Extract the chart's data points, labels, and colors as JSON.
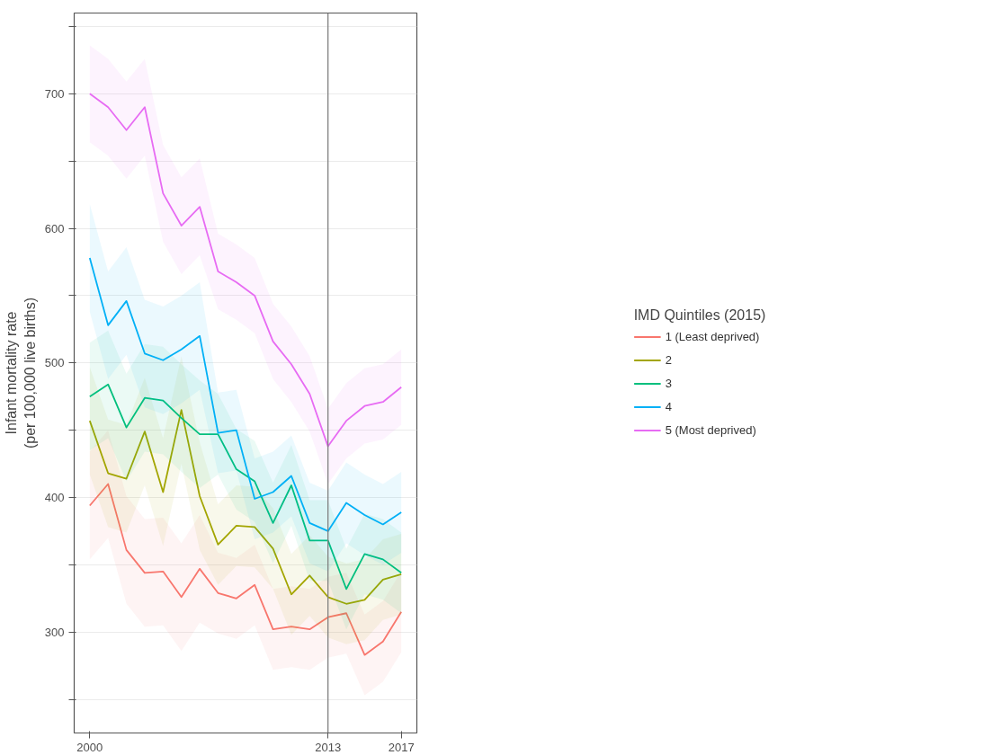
{
  "chart_data": {
    "type": "line",
    "ylabel": "Infant mortality rate\n(per 100,000 live births)",
    "legend_title": "IMD Quintiles (2015)",
    "x": [
      2000,
      2001,
      2002,
      2003,
      2004,
      2005,
      2006,
      2007,
      2008,
      2009,
      2010,
      2011,
      2012,
      2013,
      2014,
      2015,
      2016,
      2017
    ],
    "xlim": [
      1999.15,
      2017.85
    ],
    "xticks": [
      2000,
      2013,
      2017
    ],
    "ylim": [
      225,
      760
    ],
    "yticks": [
      {
        "value": 250,
        "label": null
      },
      300,
      {
        "value": 350,
        "label": null
      },
      400,
      {
        "value": 450,
        "label": null
      },
      500,
      {
        "value": 550,
        "label": null
      },
      600,
      {
        "value": 650,
        "label": null
      },
      700,
      {
        "value": 750,
        "label": null
      }
    ],
    "grid": "y",
    "legend": "right",
    "line_style": "solid",
    "marker": "none",
    "ref_lines": [
      {
        "axis": "x",
        "value": 2013,
        "color": "#808080"
      }
    ],
    "series": [
      {
        "name": "1 (Least deprived)",
        "color": "#f8766d",
        "values": [
          394,
          410,
          361,
          344,
          345,
          326,
          347,
          329,
          325,
          335,
          302,
          304,
          302,
          311,
          314,
          283,
          293,
          315
        ],
        "lower": [
          354,
          370,
          321,
          304,
          305,
          286,
          307,
          299,
          295,
          305,
          272,
          274,
          272,
          281,
          284,
          253,
          263,
          285
        ],
        "upper": [
          434,
          450,
          401,
          384,
          385,
          366,
          387,
          359,
          355,
          365,
          332,
          334,
          332,
          341,
          344,
          313,
          323,
          345
        ]
      },
      {
        "name": "2",
        "color": "#a3a500",
        "values": [
          457,
          418,
          414,
          449,
          404,
          465,
          401,
          365,
          379,
          378,
          362,
          328,
          342,
          326,
          321,
          324,
          339,
          343
        ],
        "lower": [
          417,
          378,
          374,
          409,
          364,
          425,
          361,
          335,
          349,
          348,
          332,
          298,
          312,
          296,
          291,
          294,
          309,
          313
        ],
        "upper": [
          497,
          458,
          454,
          489,
          444,
          505,
          441,
          395,
          409,
          408,
          392,
          358,
          372,
          356,
          351,
          354,
          369,
          373
        ]
      },
      {
        "name": "3",
        "color": "#00bf7d",
        "values": [
          475,
          484,
          452,
          474,
          472,
          459,
          447,
          447,
          421,
          412,
          381,
          409,
          368,
          368,
          332,
          358,
          354,
          344
        ],
        "lower": [
          435,
          444,
          412,
          434,
          432,
          419,
          407,
          417,
          391,
          382,
          351,
          379,
          338,
          338,
          302,
          328,
          324,
          314
        ],
        "upper": [
          515,
          524,
          492,
          514,
          512,
          499,
          487,
          477,
          451,
          442,
          411,
          439,
          398,
          398,
          362,
          388,
          384,
          374
        ]
      },
      {
        "name": "4",
        "color": "#00b0f6",
        "values": [
          578,
          528,
          546,
          507,
          502,
          510,
          520,
          448,
          450,
          399,
          404,
          416,
          381,
          375,
          396,
          387,
          380,
          389
        ],
        "lower": [
          538,
          488,
          506,
          467,
          462,
          470,
          480,
          418,
          420,
          369,
          374,
          386,
          351,
          345,
          366,
          357,
          350,
          359
        ],
        "upper": [
          618,
          568,
          586,
          547,
          542,
          550,
          560,
          478,
          480,
          429,
          434,
          446,
          411,
          405,
          426,
          417,
          410,
          419
        ]
      },
      {
        "name": "5 (Most deprived)",
        "color": "#e76bf3",
        "values": [
          700,
          690,
          673,
          690,
          626,
          602,
          616,
          568,
          560,
          550,
          516,
          499,
          477,
          438,
          457,
          468,
          471,
          482
        ],
        "lower": [
          664,
          654,
          637,
          654,
          590,
          566,
          580,
          540,
          532,
          522,
          488,
          471,
          449,
          410,
          429,
          440,
          443,
          454
        ],
        "upper": [
          736,
          726,
          709,
          726,
          662,
          638,
          652,
          596,
          588,
          578,
          544,
          527,
          505,
          466,
          485,
          496,
          499,
          510
        ]
      }
    ]
  }
}
